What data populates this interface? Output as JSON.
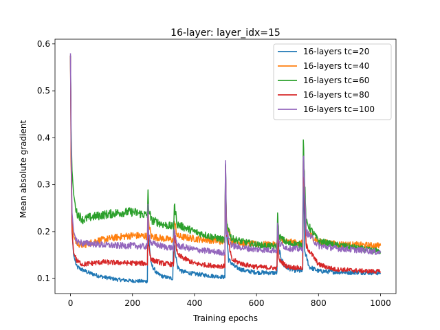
{
  "chart_data": {
    "type": "line",
    "title": "16-layer: layer_idx=15",
    "xlabel": "Training epochs",
    "ylabel": "Mean absolute gradient",
    "xlim": [
      -50,
      1050
    ],
    "ylim": [
      0.068,
      0.61
    ],
    "xticks": [
      0,
      200,
      400,
      600,
      800,
      1000
    ],
    "xtick_labels": [
      "0",
      "200",
      "400",
      "600",
      "800",
      "1000"
    ],
    "yticks": [
      0.1,
      0.2,
      0.3,
      0.4,
      0.5,
      0.6
    ],
    "ytick_labels": [
      "0.1",
      "0.2",
      "0.3",
      "0.4",
      "0.5",
      "0.6"
    ],
    "grid": false,
    "legend_position": "top-right",
    "series": [
      {
        "name": "16-layers tc=20",
        "color": "#1f77b4",
        "x": [
          0,
          2,
          5,
          10,
          20,
          40,
          60,
          80,
          100,
          150,
          200,
          248,
          250,
          252,
          260,
          280,
          300,
          330,
          333,
          335,
          345,
          360,
          400,
          450,
          498,
          500,
          503,
          510,
          530,
          560,
          600,
          666,
          668,
          672,
          690,
          720,
          749,
          751,
          755,
          770,
          800,
          850,
          900,
          950,
          1000
        ],
        "y": [
          0.575,
          0.38,
          0.2,
          0.15,
          0.125,
          0.118,
          0.112,
          0.108,
          0.104,
          0.098,
          0.095,
          0.094,
          0.27,
          0.19,
          0.13,
          0.11,
          0.104,
          0.1,
          0.23,
          0.17,
          0.125,
          0.115,
          0.11,
          0.106,
          0.103,
          0.35,
          0.2,
          0.14,
          0.125,
          0.117,
          0.113,
          0.112,
          0.23,
          0.16,
          0.125,
          0.118,
          0.115,
          0.36,
          0.16,
          0.125,
          0.116,
          0.114,
          0.113,
          0.113,
          0.112
        ]
      },
      {
        "name": "16-layers tc=40",
        "color": "#ff7f0e",
        "x": [
          0,
          2,
          5,
          10,
          20,
          40,
          60,
          80,
          100,
          150,
          200,
          248,
          250,
          252,
          260,
          300,
          333,
          335,
          345,
          400,
          450,
          498,
          500,
          503,
          520,
          560,
          600,
          666,
          668,
          672,
          700,
          749,
          751,
          760,
          800,
          850,
          900,
          950,
          1000
        ],
        "y": [
          0.575,
          0.35,
          0.22,
          0.19,
          0.175,
          0.17,
          0.175,
          0.18,
          0.182,
          0.188,
          0.192,
          0.19,
          0.255,
          0.22,
          0.19,
          0.185,
          0.182,
          0.22,
          0.19,
          0.185,
          0.182,
          0.178,
          0.33,
          0.22,
          0.18,
          0.175,
          0.173,
          0.172,
          0.21,
          0.185,
          0.178,
          0.175,
          0.34,
          0.2,
          0.178,
          0.174,
          0.172,
          0.171,
          0.17
        ]
      },
      {
        "name": "16-layers tc=60",
        "color": "#2ca02c",
        "x": [
          0,
          2,
          5,
          10,
          20,
          40,
          60,
          100,
          150,
          200,
          248,
          250,
          252,
          260,
          300,
          333,
          335,
          345,
          400,
          450,
          498,
          500,
          503,
          520,
          560,
          600,
          666,
          668,
          672,
          700,
          749,
          751,
          760,
          800,
          850,
          900,
          950,
          1000
        ],
        "y": [
          0.575,
          0.42,
          0.33,
          0.28,
          0.24,
          0.225,
          0.23,
          0.235,
          0.24,
          0.242,
          0.235,
          0.28,
          0.25,
          0.225,
          0.215,
          0.21,
          0.255,
          0.215,
          0.2,
          0.19,
          0.182,
          0.34,
          0.22,
          0.185,
          0.178,
          0.172,
          0.168,
          0.235,
          0.19,
          0.175,
          0.172,
          0.39,
          0.22,
          0.18,
          0.172,
          0.168,
          0.162,
          0.158
        ]
      },
      {
        "name": "16-layers tc=80",
        "color": "#d62728",
        "x": [
          0,
          2,
          5,
          10,
          20,
          40,
          60,
          100,
          150,
          200,
          248,
          250,
          252,
          260,
          300,
          333,
          335,
          345,
          400,
          450,
          498,
          500,
          503,
          520,
          560,
          600,
          666,
          668,
          672,
          700,
          749,
          751,
          760,
          800,
          850,
          900,
          950,
          1000
        ],
        "y": [
          0.575,
          0.36,
          0.2,
          0.155,
          0.138,
          0.13,
          0.132,
          0.135,
          0.134,
          0.133,
          0.132,
          0.25,
          0.17,
          0.14,
          0.132,
          0.13,
          0.2,
          0.15,
          0.132,
          0.128,
          0.126,
          0.35,
          0.2,
          0.14,
          0.13,
          0.125,
          0.122,
          0.2,
          0.14,
          0.125,
          0.122,
          0.36,
          0.17,
          0.13,
          0.12,
          0.118,
          0.116,
          0.115
        ]
      },
      {
        "name": "16-layers tc=100",
        "color": "#9467bd",
        "x": [
          0,
          2,
          5,
          10,
          20,
          40,
          60,
          100,
          150,
          200,
          248,
          250,
          252,
          260,
          300,
          333,
          335,
          345,
          400,
          450,
          498,
          500,
          503,
          520,
          560,
          600,
          666,
          668,
          672,
          700,
          749,
          751,
          760,
          800,
          850,
          900,
          950,
          1000
        ],
        "y": [
          0.58,
          0.4,
          0.24,
          0.2,
          0.18,
          0.175,
          0.175,
          0.172,
          0.17,
          0.17,
          0.168,
          0.255,
          0.2,
          0.175,
          0.168,
          0.165,
          0.2,
          0.17,
          0.162,
          0.158,
          0.155,
          0.355,
          0.2,
          0.17,
          0.165,
          0.162,
          0.16,
          0.22,
          0.175,
          0.165,
          0.162,
          0.37,
          0.2,
          0.17,
          0.165,
          0.162,
          0.16,
          0.155
        ]
      }
    ]
  }
}
